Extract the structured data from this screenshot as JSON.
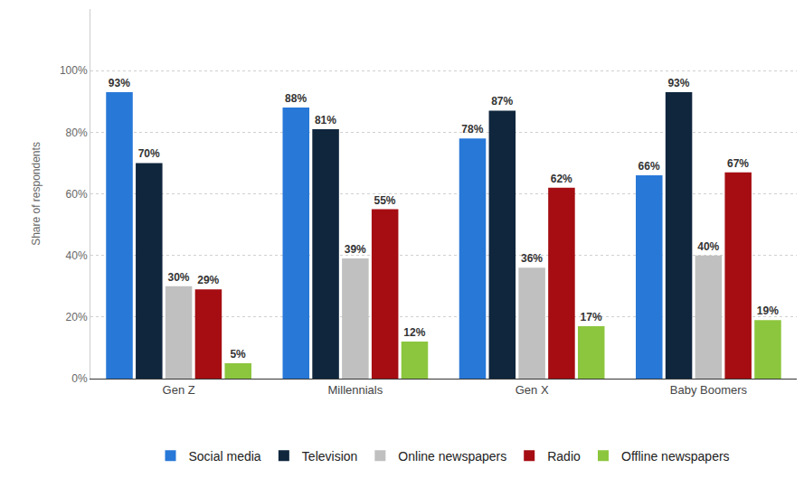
{
  "chart_data": {
    "type": "bar",
    "y_label": "Share of respondents",
    "categories": [
      "Gen Z",
      "Millennials",
      "Gen X",
      "Baby Boomers"
    ],
    "series": [
      {
        "name": "Social media",
        "color": "#2878d8",
        "values": [
          93,
          88,
          78,
          66
        ],
        "value_labels": [
          "93%",
          "88%",
          "78%",
          "66%"
        ]
      },
      {
        "name": "Television",
        "color": "#0f263d",
        "values": [
          70,
          81,
          87,
          93
        ],
        "value_labels": [
          "70%",
          "81%",
          "87%",
          "93%"
        ]
      },
      {
        "name": "Online newspapers",
        "color": "#c0c0c0",
        "values": [
          30,
          39,
          36,
          40
        ],
        "value_labels": [
          "30%",
          "39%",
          "36%",
          "40%"
        ]
      },
      {
        "name": "Radio",
        "color": "#a50d12",
        "values": [
          29,
          55,
          62,
          67
        ],
        "value_labels": [
          "29%",
          "55%",
          "62%",
          "67%"
        ]
      },
      {
        "name": "Offline newspapers",
        "color": "#8cc63e",
        "values": [
          5,
          12,
          17,
          19
        ],
        "value_labels": [
          "5%",
          "12%",
          "17%",
          "19%"
        ]
      }
    ],
    "ylim": [
      0,
      120
    ],
    "yticks": [
      {
        "value": 0,
        "label": "0%"
      },
      {
        "value": 20,
        "label": "20%"
      },
      {
        "value": 40,
        "label": "40%"
      },
      {
        "value": 60,
        "label": "60%"
      },
      {
        "value": 80,
        "label": "80%"
      },
      {
        "value": 100,
        "label": "100%"
      }
    ],
    "grid": true,
    "legend": "bottom",
    "data_labels": true
  }
}
